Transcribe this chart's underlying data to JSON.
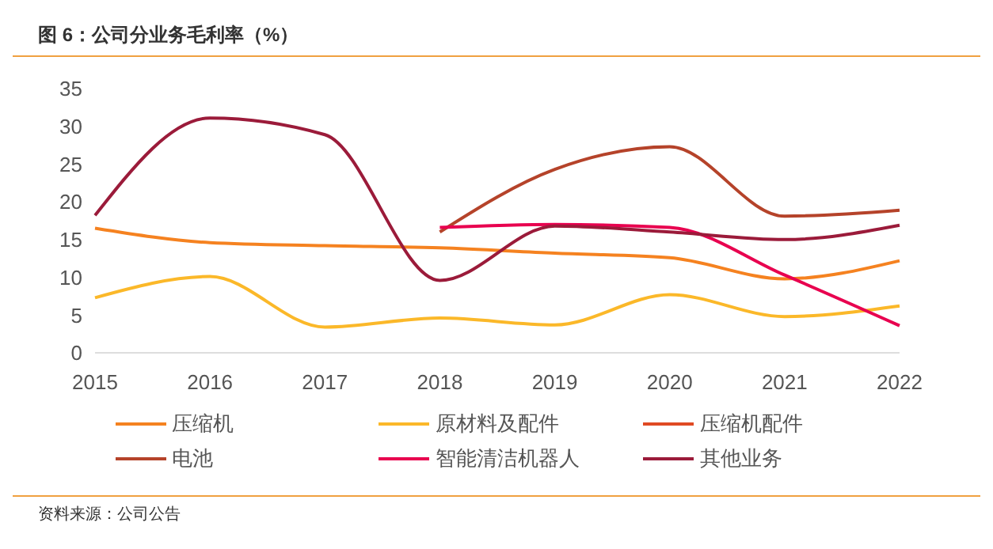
{
  "chart_data": {
    "type": "line",
    "title": "图 6：公司分业务毛利率（%）",
    "annotations": [
      "资料来源：公司公告"
    ],
    "categories": [
      "2015",
      "2016",
      "2017",
      "2018",
      "2019",
      "2020",
      "2021",
      "2022"
    ],
    "series": [
      {
        "name": "压缩机",
        "color": "#f58220",
        "values": [
          16.5,
          14.6,
          14.2,
          13.9,
          13.2,
          12.6,
          9.8,
          12.2
        ]
      },
      {
        "name": "原材料及配件",
        "color": "#fbb829",
        "values": [
          7.3,
          10.1,
          3.4,
          4.6,
          3.7,
          7.7,
          4.8,
          6.2
        ]
      },
      {
        "name": "压缩机配件",
        "color": "#e04a24",
        "values": [
          null,
          null,
          null,
          null,
          null,
          null,
          null,
          null
        ]
      },
      {
        "name": "电池",
        "color": "#b5432a",
        "values": [
          null,
          null,
          null,
          16.0,
          24.3,
          27.3,
          18.1,
          18.9
        ]
      },
      {
        "name": "智能清洁机器人",
        "color": "#e8004f",
        "values": [
          null,
          null,
          null,
          16.6,
          17.0,
          16.6,
          10.3,
          3.6
        ]
      },
      {
        "name": "其他业务",
        "color": "#9b1b3a",
        "values": [
          18.2,
          31.1,
          28.9,
          9.6,
          16.8,
          16.0,
          15.0,
          16.9
        ]
      }
    ],
    "ylim": [
      0,
      35
    ],
    "yticks": [
      0,
      5,
      10,
      15,
      20,
      25,
      30,
      35
    ],
    "grid": false,
    "legend": "bottom",
    "marker": "none",
    "line_style": "solid"
  }
}
